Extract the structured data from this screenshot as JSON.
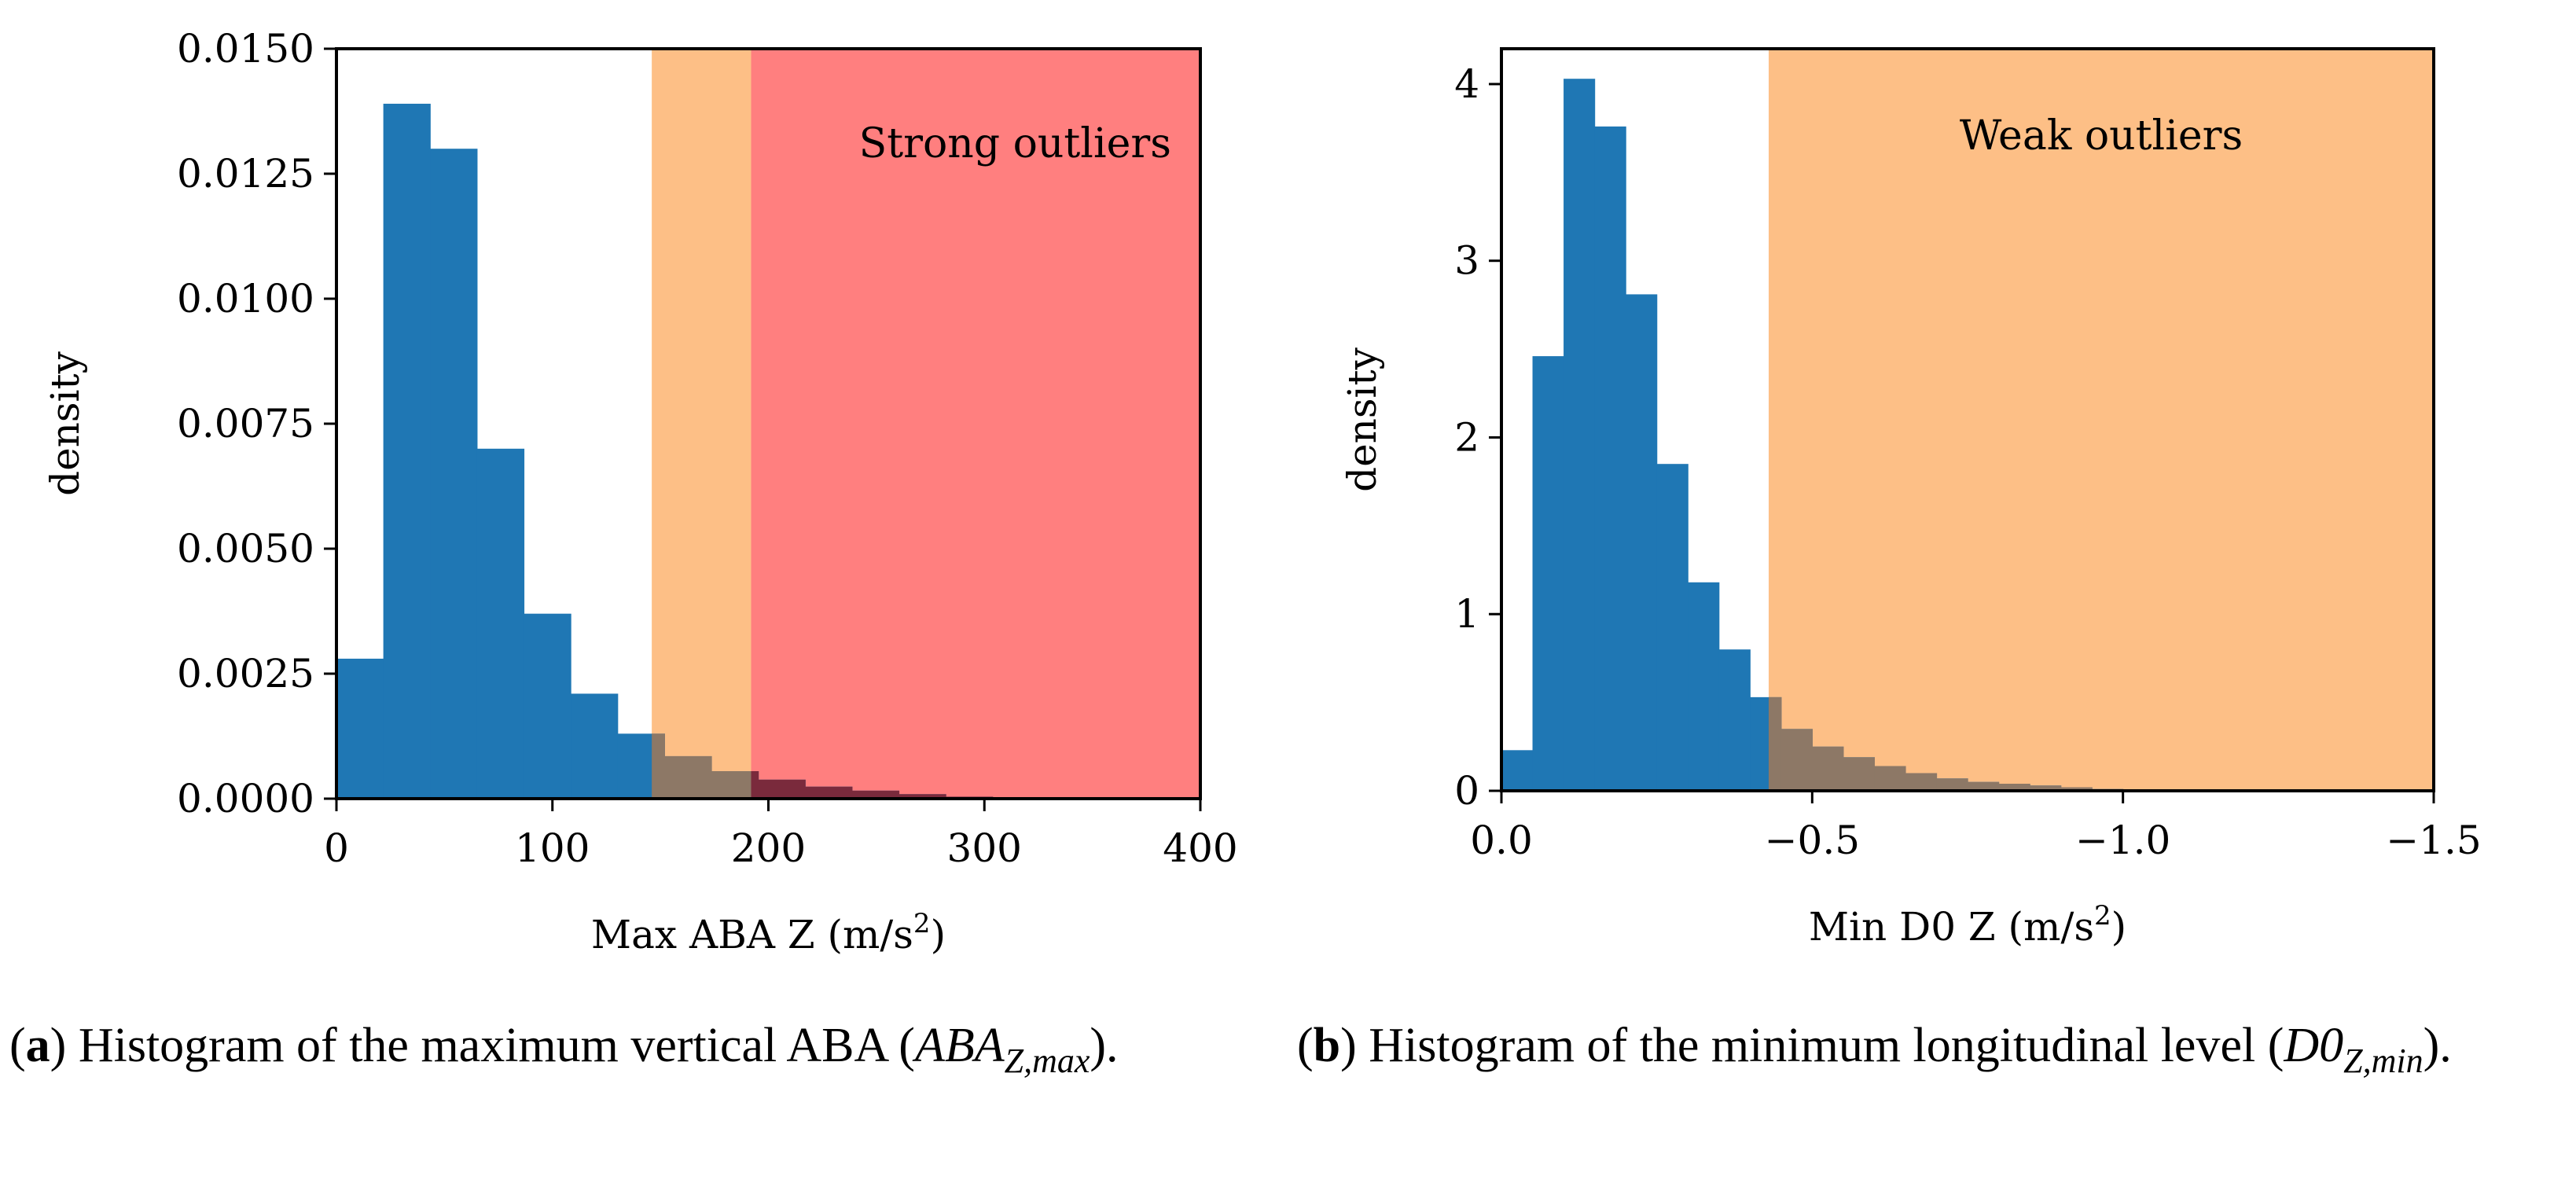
{
  "chart_data": [
    {
      "type": "bar",
      "subtype": "histogram",
      "xlabel": "Max ABA Z (m/s",
      "xlabel_sup": "2",
      "xlabel_end": ")",
      "ylabel": "density",
      "xlim": [
        0,
        400
      ],
      "ylim": [
        0,
        0.015
      ],
      "xticks": [
        0,
        100,
        200,
        300,
        400
      ],
      "xtick_labels": [
        "0",
        "100",
        "200",
        "300",
        "400"
      ],
      "yticks": [
        0,
        0.0025,
        0.005,
        0.0075,
        0.01,
        0.0125,
        0.015
      ],
      "ytick_labels": [
        "0.0000",
        "0.0025",
        "0.0050",
        "0.0075",
        "0.0100",
        "0.0125",
        "0.0150"
      ],
      "bin_edges": [
        0,
        21.7,
        43.4,
        65.1,
        86.8,
        108.5,
        130.2,
        151.9,
        173.6,
        195.3,
        217.0,
        238.7,
        260.4,
        282.1,
        303.8
      ],
      "values": [
        0.0028,
        0.0139,
        0.013,
        0.007,
        0.0037,
        0.0021,
        0.0013,
        0.00085,
        0.00055,
        0.00038,
        0.00024,
        0.00016,
        9e-05,
        4e-05
      ],
      "bar_color": "#1f77b4",
      "regions": [
        {
          "x0": 146,
          "x1": 192,
          "color": "#fdbf86",
          "label": ""
        },
        {
          "x0": 192,
          "x1": 400,
          "color": "#ff7f7f",
          "label": "Strong outliers"
        }
      ],
      "grid": false
    },
    {
      "type": "bar",
      "subtype": "histogram",
      "xlabel": "Min D0 Z (m/s",
      "xlabel_sup": "2",
      "xlabel_end": ")",
      "ylabel": "density",
      "xlim": [
        0,
        -1.5
      ],
      "ylim": [
        0,
        4.2
      ],
      "xticks": [
        0,
        -0.5,
        -1.0,
        -1.5
      ],
      "xtick_labels": [
        "0.0",
        "−0.5",
        "−1.0",
        "−1.5"
      ],
      "yticks": [
        0,
        1,
        2,
        3,
        4
      ],
      "ytick_labels": [
        "0",
        "1",
        "2",
        "3",
        "4"
      ],
      "bin_edges": [
        0,
        -0.05,
        -0.1,
        -0.15,
        -0.2,
        -0.25,
        -0.3,
        -0.35,
        -0.4,
        -0.45,
        -0.5,
        -0.55,
        -0.6,
        -0.65,
        -0.7,
        -0.75,
        -0.8,
        -0.85,
        -0.9,
        -0.95,
        -1.0
      ],
      "values": [
        0.23,
        2.46,
        4.03,
        3.76,
        2.81,
        1.85,
        1.18,
        0.8,
        0.53,
        0.35,
        0.25,
        0.19,
        0.14,
        0.1,
        0.07,
        0.05,
        0.04,
        0.03,
        0.02,
        0.01
      ],
      "bar_color": "#1f77b4",
      "regions": [
        {
          "x0": -0.43,
          "x1": -1.5,
          "color": "#fdbf86",
          "label": "Weak outliers"
        }
      ],
      "grid": false
    }
  ],
  "captions": {
    "a": {
      "tag": "a",
      "text": " Histogram of the maximum vertical ABA (",
      "math": "ABA",
      "sub": "Z,max",
      "end": ")."
    },
    "b": {
      "tag": "b",
      "text": " Histogram of the minimum longitudinal level (",
      "math": "D0",
      "sub": "Z,min",
      "end": ")."
    }
  }
}
